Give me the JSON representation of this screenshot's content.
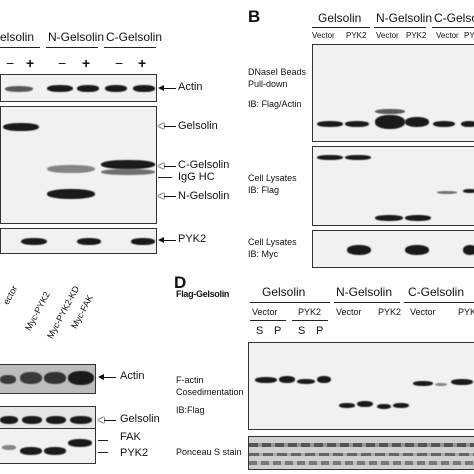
{
  "panel_b": {
    "letter": "B",
    "groups": [
      "Gelsolin",
      "N-Gelsolin",
      "C-Gelso"
    ],
    "lane_labels": [
      "Vector",
      "PYK2",
      "Vector",
      "PYK2",
      "Vector",
      "PY"
    ],
    "row1_label_a": "DNaseI Beads",
    "row1_label_b": "Pull-down",
    "row1_label_c": "IB: Flag/Actin",
    "row2_label_a": "Cell Lysates",
    "row2_label_b": "IB: Flag",
    "row3_label_a": "Cell Lysates",
    "row3_label_b": "IB: Myc"
  },
  "panel_a": {
    "groups": [
      "elsolin",
      "N-Gelsolin",
      "C-Gelsolin"
    ],
    "signs": [
      "−",
      "+",
      "−",
      "+",
      "−",
      "+"
    ],
    "labels": {
      "actin": "Actin",
      "gelsolin": "Gelsolin",
      "c_gelsolin": "C-Gelsolin",
      "igg": "IgG HC",
      "n_gelsolin": "N-Gelsolin",
      "pyk2": "PYK2"
    }
  },
  "panel_c": {
    "lanes": [
      "ector",
      "Myc-PYK2",
      "Myc-PYK2-KD",
      "Myc-FAK"
    ],
    "labels": {
      "actin": "Actin",
      "gelsolin": "Gelsolin",
      "fak": "FAK",
      "pyk2": "PYK2"
    }
  },
  "panel_d": {
    "letter": "D",
    "flag_label": "Flag-Gelsolin",
    "groups": [
      "Gelsolin",
      "N-Gelsolin",
      "C-Gelsolin"
    ],
    "sub": [
      "Vector",
      "PYK2",
      "Vector",
      "PYK2",
      "Vector",
      "PYK"
    ],
    "sp": [
      "S",
      "P",
      "S",
      "P"
    ],
    "row1_label_a": "F-actin",
    "row1_label_b": "Cosedimentation",
    "row1_label_c": "IB:Flag",
    "row2_label": "Ponceau S stain"
  }
}
